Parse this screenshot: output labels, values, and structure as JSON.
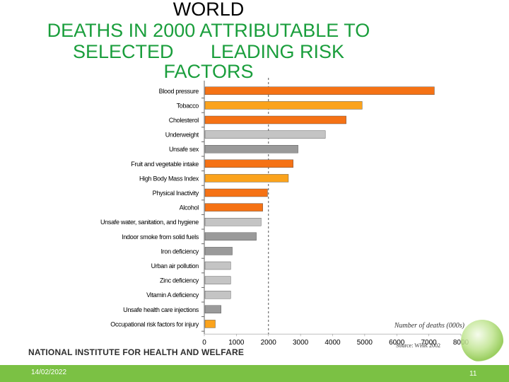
{
  "slide": {
    "title_line1": "WORLD",
    "title_line2": "DEATHS IN 2000 ATTRIBUTABLE TO",
    "title_line3": "SELECTED       LEADING RISK",
    "title_line4": "FACTORS",
    "source": "Source:  WHR 2002",
    "institute": "NATIONAL INSTITUTE FOR HEALTH AND WELFARE",
    "date": "14/02/2022",
    "page_number": "11"
  },
  "colors": {
    "title": "#1a9e3c",
    "footer": "#7bc144",
    "bar_orange_dark": "#f57215",
    "bar_orange_light": "#fba31c",
    "bar_gray_light": "#c4c4c4",
    "bar_gray_dark": "#9a9a9a"
  },
  "chart_data": {
    "type": "bar",
    "orientation": "horizontal",
    "xlabel": "Number of deaths (000s)",
    "xlim": [
      0,
      8000
    ],
    "xticks": [
      0,
      1000,
      2000,
      3000,
      4000,
      5000,
      6000,
      7000,
      8000
    ],
    "reference_line": 2000,
    "categories": [
      "Blood pressure",
      "Tobacco",
      "Cholesterol",
      "Underweight",
      "Unsafe sex",
      "Fruit and vegetable intake",
      "High Body Mass Index",
      "Physical Inactivity",
      "Alcohol",
      "Unsafe water, sanitation, and hygiene",
      "Indoor smoke from solid fuels",
      "Iron deficiency",
      "Urban air pollution",
      "Zinc deficiency",
      "Vitamin A deficiency",
      "Unsafe health care injections",
      "Occupational risk factors for injury"
    ],
    "values": [
      7150,
      4900,
      4400,
      3750,
      2900,
      2750,
      2600,
      1950,
      1800,
      1750,
      1600,
      850,
      800,
      800,
      800,
      500,
      320
    ],
    "bar_colors": [
      "#f57215",
      "#fba31c",
      "#f57215",
      "#c4c4c4",
      "#9a9a9a",
      "#f57215",
      "#fba31c",
      "#f57215",
      "#f57215",
      "#c4c4c4",
      "#9a9a9a",
      "#9a9a9a",
      "#c4c4c4",
      "#c4c4c4",
      "#c4c4c4",
      "#9a9a9a",
      "#fba31c"
    ]
  }
}
